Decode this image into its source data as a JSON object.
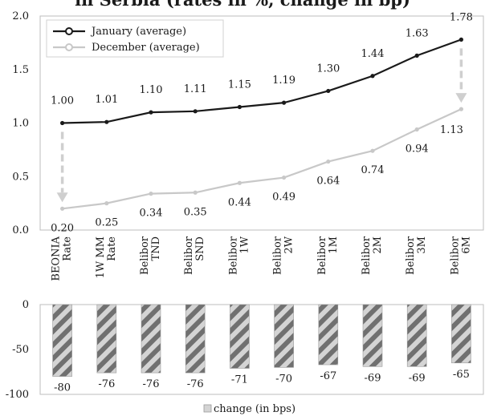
{
  "title": "in Serbia (rates in %, change in bp)",
  "chart_data": [
    {
      "type": "line",
      "categories": [
        [
          "BEONIA",
          "Rate"
        ],
        [
          "1W MM",
          "Rate"
        ],
        [
          "Belibor",
          "TND"
        ],
        [
          "Belibor",
          "SND"
        ],
        [
          "Belibor",
          "1W"
        ],
        [
          "Belibor",
          "2W"
        ],
        [
          "Belibor",
          "1M"
        ],
        [
          "Belibor",
          "2M"
        ],
        [
          "Belibor",
          "3M"
        ],
        [
          "Belibor",
          "6M"
        ]
      ],
      "series": [
        {
          "name": "January (average)",
          "color": "#1a1a1a",
          "values": [
            1.0,
            1.01,
            1.1,
            1.11,
            1.15,
            1.19,
            1.3,
            1.44,
            1.63,
            1.78
          ],
          "labels": [
            "1.00",
            "1.01",
            "1.10",
            "1.11",
            "1.15",
            "1.19",
            "1.30",
            "1.44",
            "1.63",
            "1.78"
          ]
        },
        {
          "name": "December (average)",
          "color": "#c8c8c8",
          "values": [
            0.2,
            0.25,
            0.34,
            0.35,
            0.44,
            0.49,
            0.64,
            0.74,
            0.94,
            1.13
          ],
          "labels": [
            "0.20",
            "0.25",
            "0.34",
            "0.35",
            "0.44",
            "0.49",
            "0.64",
            "0.74",
            "0.94",
            "1.13"
          ]
        }
      ],
      "ylim": [
        0.0,
        2.0
      ],
      "yticks": [
        "0.0",
        "0.5",
        "1.0",
        "1.5",
        "2.0"
      ],
      "legend": "top-left",
      "annotations": [
        "dashed arrow from January to December at BEONIA Rate",
        "dashed arrow from January to December at Belibor 6M"
      ]
    },
    {
      "type": "bar",
      "categories": [
        "BEONIA Rate",
        "1W MM Rate",
        "Belibor TND",
        "Belibor SND",
        "Belibor 1W",
        "Belibor 2W",
        "Belibor 1M",
        "Belibor 2M",
        "Belibor 3M",
        "Belibor 6M"
      ],
      "series": [
        {
          "name": "change (in bps)",
          "color": "#c8c8c8",
          "pattern": "diagonal-hatch",
          "values": [
            -80,
            -76,
            -76,
            -76,
            -71,
            -70,
            -67,
            -69,
            -69,
            -65
          ],
          "labels": [
            "-80",
            "-76",
            "-76",
            "-76",
            "-71",
            "-70",
            "-67",
            "-69",
            "-69",
            "-65"
          ]
        }
      ],
      "ylim": [
        -100,
        0
      ],
      "yticks": [
        "0",
        "-50",
        "-100"
      ],
      "legend": "bottom-center"
    }
  ]
}
